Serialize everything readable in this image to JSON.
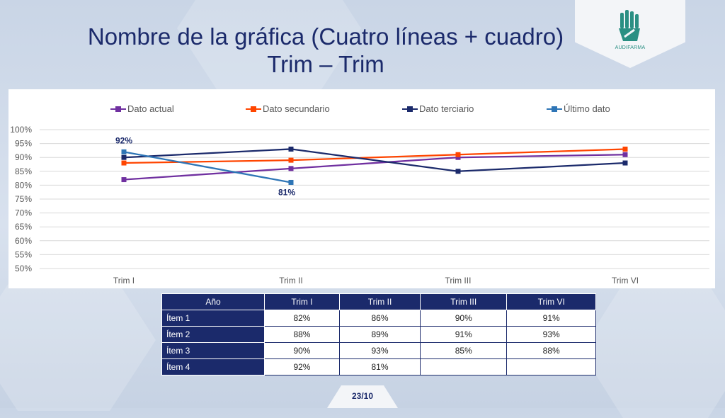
{
  "slide": {
    "title_line1": "Nombre de la gráfica (Cuatro líneas + cuadro)",
    "title_line2": "Trim – Trim",
    "logo_text": "AUDIFARMA",
    "page_number": "23/10"
  },
  "colors": {
    "dato_actual": "#7030a0",
    "dato_secundario": "#ff4500",
    "dato_terciario": "#1b2a6b",
    "ultimo_dato": "#2e75b6",
    "navy": "#1b2a6b"
  },
  "chart_data": {
    "type": "line",
    "categories": [
      "Trim I",
      "Trim II",
      "Trim III",
      "Trim VI"
    ],
    "series": [
      {
        "name": "Dato actual",
        "values": [
          82,
          86,
          90,
          91
        ],
        "color": "#7030a0"
      },
      {
        "name": "Dato secundario",
        "values": [
          88,
          89,
          91,
          93
        ],
        "color": "#ff4500"
      },
      {
        "name": "Dato terciario",
        "values": [
          90,
          93,
          85,
          88
        ],
        "color": "#1b2a6b"
      },
      {
        "name": "Último dato",
        "values": [
          92,
          81,
          null,
          null
        ],
        "color": "#2e75b6"
      }
    ],
    "data_labels": [
      {
        "series": "Último dato",
        "category": "Trim I",
        "text": "92%"
      },
      {
        "series": "Último dato",
        "category": "Trim II",
        "text": "81%"
      }
    ],
    "ylim": [
      50,
      100
    ],
    "yticks": [
      "50%",
      "55%",
      "60%",
      "65%",
      "70%",
      "75%",
      "80%",
      "85%",
      "90%",
      "95%",
      "100%"
    ],
    "ytick_values": [
      50,
      55,
      60,
      65,
      70,
      75,
      80,
      85,
      90,
      95,
      100
    ],
    "grid": true,
    "legend_position": "top"
  },
  "table": {
    "header": [
      "Año",
      "Trim I",
      "Trim II",
      "Trim III",
      "Trim VI"
    ],
    "rows": [
      [
        "Ítem 1",
        "82%",
        "86%",
        "90%",
        "91%"
      ],
      [
        "Ítem 2",
        "88%",
        "89%",
        "91%",
        "93%"
      ],
      [
        "Ítem 3",
        "90%",
        "93%",
        "85%",
        "88%"
      ],
      [
        "Ítem 4",
        "92%",
        "81%",
        "",
        ""
      ]
    ]
  }
}
